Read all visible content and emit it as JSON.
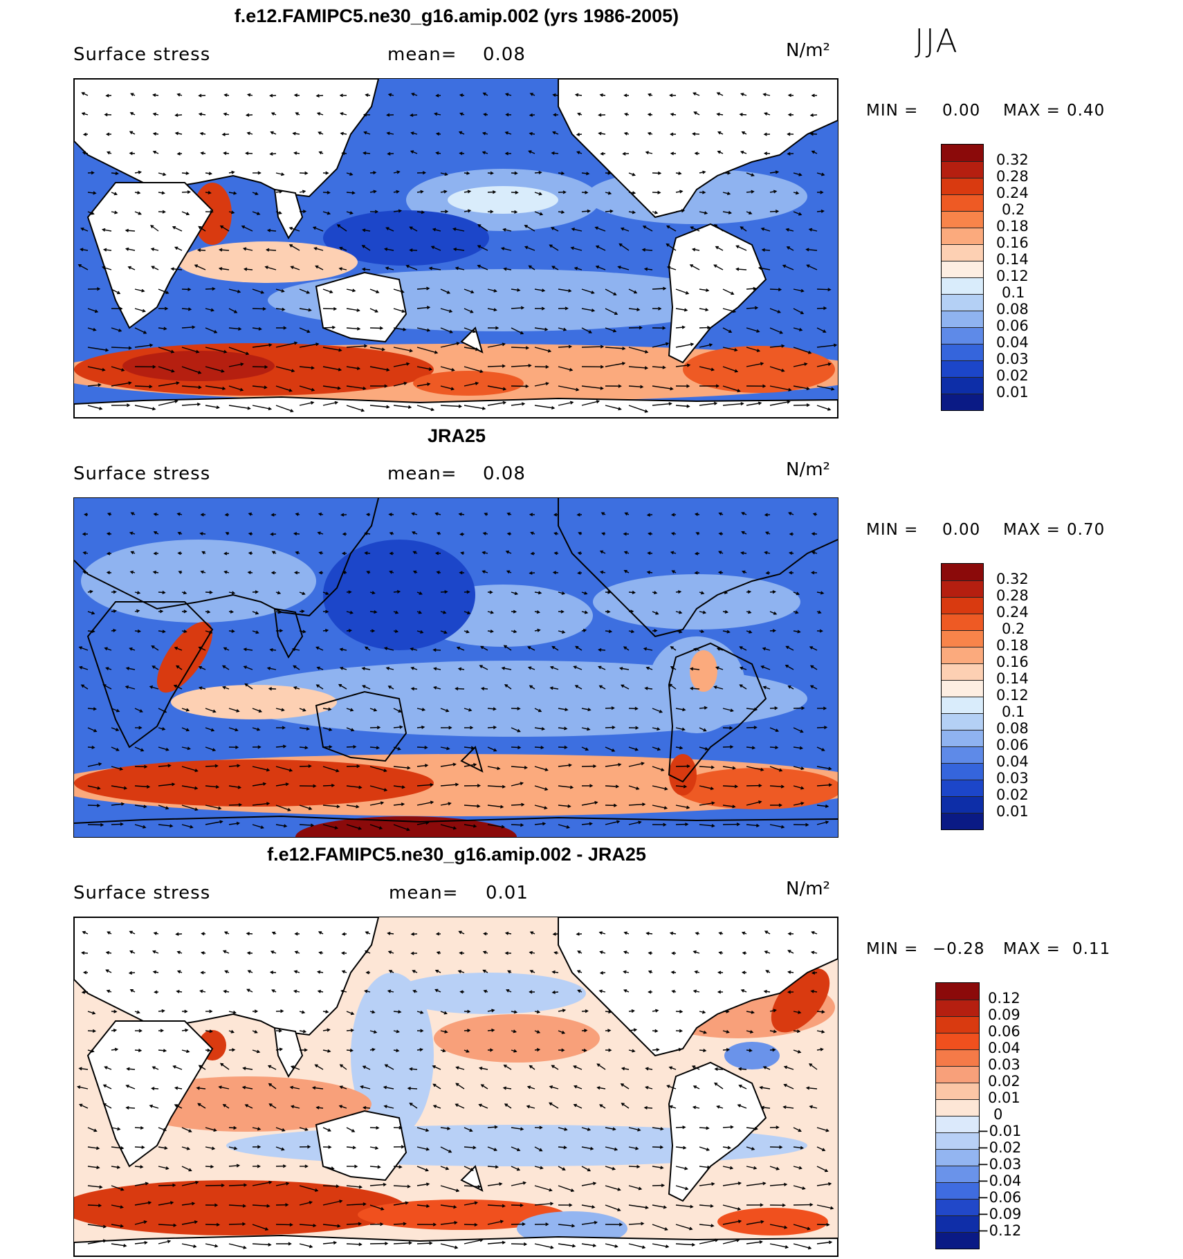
{
  "season": "JJA",
  "panels": [
    {
      "id": "model",
      "title": "f.e12.FAMIPC5.ne30_g16.amip.002 (yrs 1986-2005)",
      "field_label": "Surface stress",
      "mean_label": "mean=",
      "mean_value": "0.08",
      "units": "N/m²",
      "min_label": "MIN =",
      "min_value": "0.00",
      "max_label": "MAX =",
      "max_value": "0.40",
      "colorbar_labels": [
        "0.32",
        "0.28",
        "0.24",
        "0.2",
        "0.18",
        "0.16",
        "0.14",
        "0.12",
        "0.1",
        "0.08",
        "0.06",
        "0.04",
        "0.03",
        "0.02",
        "0.01"
      ],
      "colorbar_colors": [
        "#8b0a0a",
        "#b51f10",
        "#d93a10",
        "#ee5a24",
        "#f8844a",
        "#fbaa7d",
        "#fdd0b3",
        "#fdeee2",
        "#d9ecfb",
        "#b4d0f5",
        "#8fb3f0",
        "#5e8ae8",
        "#3565dc",
        "#1c46c9",
        "#0d2ea8",
        "#0a1a85"
      ],
      "background_colors": {
        "ocean": "#3d6fe0",
        "land": "#ffffff",
        "strong": "#d93a10",
        "weak": "#b4d0f5"
      }
    },
    {
      "id": "obs",
      "title": "JRA25",
      "field_label": "Surface stress",
      "mean_label": "mean=",
      "mean_value": "0.08",
      "units": "N/m²",
      "min_label": "MIN =",
      "min_value": "0.00",
      "max_label": "MAX =",
      "max_value": "0.70",
      "colorbar_labels": [
        "0.32",
        "0.28",
        "0.24",
        "0.2",
        "0.18",
        "0.16",
        "0.14",
        "0.12",
        "0.1",
        "0.08",
        "0.06",
        "0.04",
        "0.03",
        "0.02",
        "0.01"
      ],
      "colorbar_colors": [
        "#8b0a0a",
        "#b51f10",
        "#d93a10",
        "#ee5a24",
        "#f8844a",
        "#fbaa7d",
        "#fdd0b3",
        "#fdeee2",
        "#d9ecfb",
        "#b4d0f5",
        "#8fb3f0",
        "#5e8ae8",
        "#3565dc",
        "#1c46c9",
        "#0d2ea8",
        "#0a1a85"
      ],
      "background_colors": {
        "ocean": "#3d6fe0",
        "land": "#3d6fe0",
        "strong": "#d93a10",
        "weak": "#b4d0f5"
      }
    },
    {
      "id": "diff",
      "title": "f.e12.FAMIPC5.ne30_g16.amip.002 - JRA25",
      "field_label": "Surface stress",
      "mean_label": "mean=",
      "mean_value": "0.01",
      "units": "N/m²",
      "min_label": "MIN =",
      "min_value": "−0.28",
      "max_label": "MAX =",
      "max_value": "0.11",
      "colorbar_labels": [
        "0.12",
        "0.09",
        "0.06",
        "0.04",
        "0.03",
        "0.02",
        "0.01",
        "0",
        "−0.01",
        "−0.02",
        "−0.03",
        "−0.04",
        "−0.06",
        "−0.09",
        "−0.12"
      ],
      "colorbar_colors": [
        "#8b0a0a",
        "#b51f10",
        "#d93a10",
        "#f0501e",
        "#f57a48",
        "#f8a07a",
        "#fbc6a6",
        "#fde6d6",
        "#dbe9fb",
        "#b8d0f6",
        "#93b5f1",
        "#6a93ea",
        "#3f6ce0",
        "#2148c9",
        "#0f2ea8",
        "#0a1a85"
      ],
      "background_colors": {
        "ocean": "#fde6d6",
        "land": "#ffffff",
        "strong": "#d93a10",
        "weak": "#b8d0f6"
      }
    }
  ]
}
